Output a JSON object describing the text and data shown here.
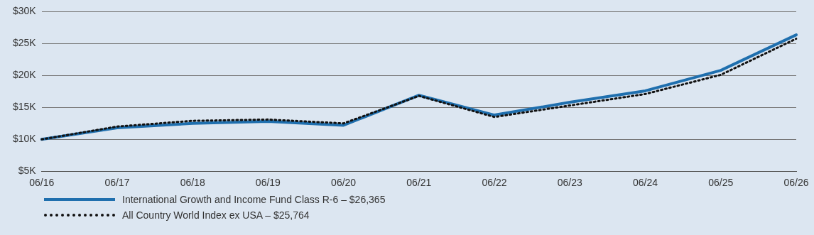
{
  "chart_data": {
    "type": "line",
    "categories": [
      "06/16",
      "06/17",
      "06/18",
      "06/19",
      "06/20",
      "06/21",
      "06/22",
      "06/23",
      "06/24",
      "06/25",
      "06/26"
    ],
    "series": [
      {
        "name": "International Growth and Income Fund Class R-6 – $26,365",
        "color": "#1f6fae",
        "line_style": "solid",
        "values": [
          10000,
          11800,
          12500,
          12800,
          12200,
          16900,
          13800,
          15800,
          17600,
          20800,
          26365
        ]
      },
      {
        "name": "All Country World Index ex USA – $25,764",
        "color": "#111111",
        "line_style": "dotted",
        "values": [
          10000,
          12000,
          12900,
          13100,
          12500,
          16800,
          13500,
          15300,
          17100,
          20100,
          25764
        ]
      }
    ],
    "ylim": [
      5000,
      30000
    ],
    "yticks": [
      {
        "value": 5000,
        "label": "$5K"
      },
      {
        "value": 10000,
        "label": "$10K"
      },
      {
        "value": 15000,
        "label": "$15K"
      },
      {
        "value": 20000,
        "label": "$20K"
      },
      {
        "value": 25000,
        "label": "$25K"
      },
      {
        "value": 30000,
        "label": "$30K"
      }
    ],
    "grid": "y",
    "legend": "bottom left",
    "marker": "none"
  }
}
